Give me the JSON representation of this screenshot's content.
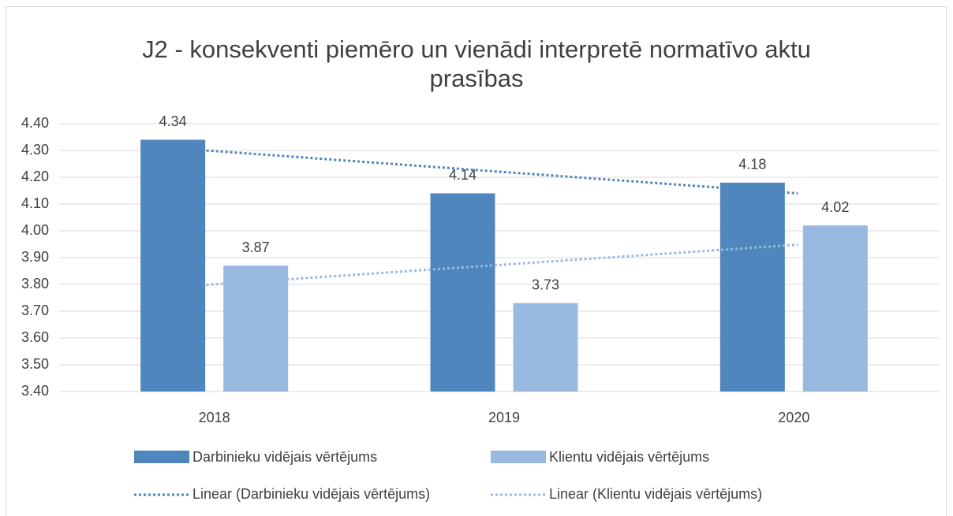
{
  "chart_data": {
    "type": "bar",
    "title": "J2 - konsekventi piemēro un vienādi interpretē normatīvo aktu prasības",
    "categories": [
      "2018",
      "2019",
      "2020"
    ],
    "series": [
      {
        "name": "Darbinieku vidējais vērtējums",
        "color": "#4f86bd",
        "values": [
          4.34,
          4.14,
          4.18
        ],
        "trendline": "Linear (Darbinieku vidējais vērtējums)"
      },
      {
        "name": "Klientu vidējais vērtējums",
        "color": "#98b9e0",
        "values": [
          3.87,
          3.73,
          4.02
        ],
        "trendline": "Linear (Klientu vidējais vērtējums)"
      }
    ],
    "ylim": [
      3.4,
      4.4
    ],
    "yticks": [
      {
        "value": 3.4,
        "label": "3.40"
      },
      {
        "value": 3.5,
        "label": "3.50"
      },
      {
        "value": 3.6,
        "label": "3.60"
      },
      {
        "value": 3.7,
        "label": "3.70"
      },
      {
        "value": 3.8,
        "label": "3.80"
      },
      {
        "value": 3.9,
        "label": "3.90"
      },
      {
        "value": 4.0,
        "label": "4.00"
      },
      {
        "value": 4.1,
        "label": "4.10"
      },
      {
        "value": 4.2,
        "label": "4.20"
      },
      {
        "value": 4.3,
        "label": "4.30"
      },
      {
        "value": 4.4,
        "label": "4.40"
      }
    ],
    "grid": true,
    "legend": "bottom"
  }
}
